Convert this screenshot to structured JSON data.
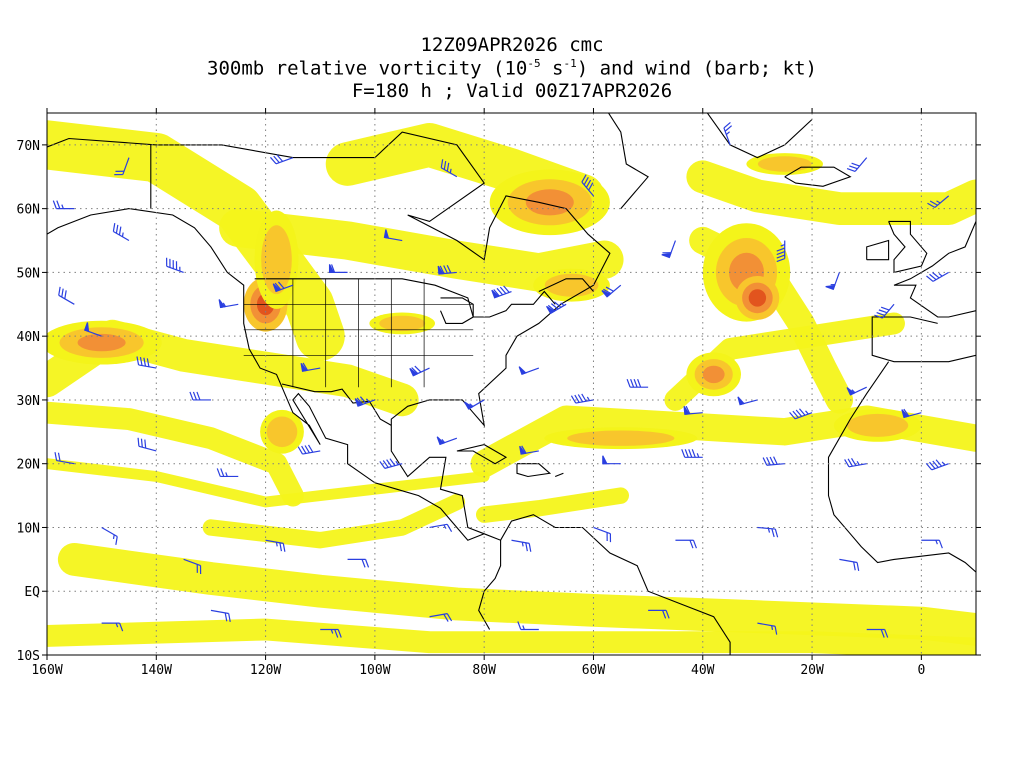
{
  "title": {
    "line1": "12Z09APR2026 cmc",
    "line2_a": "300mb relative vorticity (10",
    "line2_sup1": "-5",
    "line2_b": " s",
    "line2_sup2": "-1",
    "line2_c": ") and wind (barb; kt)",
    "line3": "F=180 h ; Valid 00Z17APR2026"
  },
  "axes": {
    "lat_labels": [
      "70N",
      "60N",
      "50N",
      "40N",
      "30N",
      "20N",
      "10N",
      "EQ",
      "10S"
    ],
    "lat_values": [
      70,
      60,
      50,
      40,
      30,
      20,
      10,
      0,
      -10
    ],
    "lon_labels": [
      "160W",
      "140W",
      "120W",
      "100W",
      "80W",
      "60W",
      "40W",
      "20W",
      "0"
    ],
    "lon_values": [
      -160,
      -140,
      -120,
      -100,
      -80,
      -60,
      -40,
      -20,
      0
    ],
    "lon_range": [
      -160,
      10
    ],
    "lat_range": [
      -10,
      75
    ],
    "grid": "dotted"
  },
  "colors": {
    "shade_light": "#f4f41a",
    "shade_mid": "#f8c62c",
    "shade_orange": "#f29036",
    "shade_dark": "#e2541e",
    "barb": "#2a3fe0",
    "coast": "#000000"
  },
  "map_features": {
    "vorticity": [
      {
        "lon": -150,
        "lat": 39,
        "rx": 11,
        "ry": 4,
        "level": "orange"
      },
      {
        "lon": -120,
        "lat": 45,
        "rx": 4,
        "ry": 5,
        "level": "dark"
      },
      {
        "lon": -118,
        "lat": 52,
        "rx": 4,
        "ry": 9,
        "level": "mid"
      },
      {
        "lon": -95,
        "lat": 42,
        "rx": 6,
        "ry": 2,
        "level": "mid"
      },
      {
        "lon": -68,
        "lat": 61,
        "rx": 11,
        "ry": 6,
        "level": "orange"
      },
      {
        "lon": -64,
        "lat": 48,
        "rx": 7,
        "ry": 3,
        "level": "mid"
      },
      {
        "lon": -32,
        "lat": 50,
        "rx": 8,
        "ry": 9,
        "level": "orange"
      },
      {
        "lon": -30,
        "lat": 46,
        "rx": 4,
        "ry": 4,
        "level": "dark"
      },
      {
        "lon": -38,
        "lat": 34,
        "rx": 5,
        "ry": 4,
        "level": "orange"
      },
      {
        "lon": -55,
        "lat": 24,
        "rx": 14,
        "ry": 2,
        "level": "mid"
      },
      {
        "lon": -117,
        "lat": 25,
        "rx": 4,
        "ry": 4,
        "level": "mid"
      },
      {
        "lon": -8,
        "lat": 26,
        "rx": 8,
        "ry": 3,
        "level": "mid"
      },
      {
        "lon": -25,
        "lat": 67,
        "rx": 7,
        "ry": 2,
        "level": "mid"
      }
    ],
    "bands": [
      {
        "pts": [
          [
            -160,
            70
          ],
          [
            -140,
            68
          ],
          [
            -125,
            60
          ],
          [
            -118,
            52
          ],
          [
            -112,
            45
          ],
          [
            -110,
            40
          ]
        ],
        "w": 9
      },
      {
        "pts": [
          [
            -125,
            57
          ],
          [
            -105,
            55
          ],
          [
            -85,
            52
          ],
          [
            -70,
            50
          ],
          [
            -58,
            52
          ]
        ],
        "w": 7
      },
      {
        "pts": [
          [
            -105,
            67
          ],
          [
            -90,
            70
          ],
          [
            -75,
            66
          ],
          [
            -62,
            62
          ]
        ],
        "w": 8
      },
      {
        "pts": [
          [
            -160,
            33
          ],
          [
            -148,
            40
          ],
          [
            -135,
            37
          ],
          [
            -120,
            35
          ],
          [
            -105,
            33
          ],
          [
            -95,
            30
          ]
        ],
        "w": 6
      },
      {
        "pts": [
          [
            -160,
            28
          ],
          [
            -145,
            27
          ],
          [
            -130,
            24
          ],
          [
            -118,
            20
          ],
          [
            -115,
            15
          ]
        ],
        "w": 4
      },
      {
        "pts": [
          [
            -155,
            5
          ],
          [
            -130,
            2
          ],
          [
            -110,
            0
          ],
          [
            -85,
            -2
          ],
          [
            -60,
            -3
          ],
          [
            -30,
            -4
          ],
          [
            0,
            -5
          ],
          [
            10,
            -6
          ]
        ],
        "w": 6
      },
      {
        "pts": [
          [
            -160,
            -7
          ],
          [
            -120,
            -6
          ],
          [
            -90,
            -8
          ],
          [
            -50,
            -8
          ],
          [
            -20,
            -8
          ],
          [
            10,
            -9
          ]
        ],
        "w": 4
      },
      {
        "pts": [
          [
            -80,
            20
          ],
          [
            -65,
            27
          ],
          [
            -45,
            26
          ],
          [
            -25,
            25
          ],
          [
            -10,
            27
          ],
          [
            10,
            24
          ]
        ],
        "w": 5
      },
      {
        "pts": [
          [
            -45,
            30
          ],
          [
            -35,
            38
          ],
          [
            -20,
            40
          ],
          [
            -5,
            42
          ]
        ],
        "w": 4
      },
      {
        "pts": [
          [
            -40,
            65
          ],
          [
            -30,
            62
          ],
          [
            -15,
            60
          ],
          [
            5,
            60
          ],
          [
            10,
            62
          ]
        ],
        "w": 6
      },
      {
        "pts": [
          [
            -40,
            55
          ],
          [
            -28,
            50
          ],
          [
            -22,
            42
          ],
          [
            -18,
            35
          ],
          [
            -15,
            30
          ]
        ],
        "w": 5
      },
      {
        "pts": [
          [
            -160,
            20
          ],
          [
            -140,
            18
          ],
          [
            -120,
            14
          ],
          [
            -100,
            16
          ],
          [
            -80,
            18
          ]
        ],
        "w": 2
      },
      {
        "pts": [
          [
            -130,
            10
          ],
          [
            -110,
            8
          ],
          [
            -95,
            10
          ],
          [
            -85,
            14
          ]
        ],
        "w": 3
      },
      {
        "pts": [
          [
            -80,
            12
          ],
          [
            -70,
            13
          ],
          [
            -55,
            15
          ]
        ],
        "w": 3
      }
    ],
    "barbs": [
      {
        "lon": -155,
        "lat": 60,
        "dir": 270,
        "spd": 25
      },
      {
        "lon": -145,
        "lat": 55,
        "dir": 300,
        "spd": 35
      },
      {
        "lon": -135,
        "lat": 50,
        "dir": 290,
        "spd": 45
      },
      {
        "lon": -125,
        "lat": 45,
        "dir": 260,
        "spd": 55
      },
      {
        "lon": -115,
        "lat": 48,
        "dir": 250,
        "spd": 70
      },
      {
        "lon": -105,
        "lat": 50,
        "dir": 270,
        "spd": 60
      },
      {
        "lon": -95,
        "lat": 55,
        "dir": 280,
        "spd": 50
      },
      {
        "lon": -85,
        "lat": 50,
        "dir": 265,
        "spd": 80
      },
      {
        "lon": -75,
        "lat": 47,
        "dir": 250,
        "spd": 90
      },
      {
        "lon": -65,
        "lat": 45,
        "dir": 240,
        "spd": 85
      },
      {
        "lon": -55,
        "lat": 48,
        "dir": 230,
        "spd": 70
      },
      {
        "lon": -45,
        "lat": 55,
        "dir": 200,
        "spd": 60
      },
      {
        "lon": -25,
        "lat": 55,
        "dir": 180,
        "spd": 45
      },
      {
        "lon": -15,
        "lat": 50,
        "dir": 200,
        "spd": 55
      },
      {
        "lon": -5,
        "lat": 45,
        "dir": 220,
        "spd": 40
      },
      {
        "lon": 5,
        "lat": 50,
        "dir": 240,
        "spd": 35
      },
      {
        "lon": -150,
        "lat": 40,
        "dir": 290,
        "spd": 50
      },
      {
        "lon": -140,
        "lat": 35,
        "dir": 280,
        "spd": 40
      },
      {
        "lon": -130,
        "lat": 30,
        "dir": 270,
        "spd": 30
      },
      {
        "lon": -110,
        "lat": 35,
        "dir": 260,
        "spd": 60
      },
      {
        "lon": -100,
        "lat": 30,
        "dir": 250,
        "spd": 75
      },
      {
        "lon": -90,
        "lat": 35,
        "dir": 245,
        "spd": 70
      },
      {
        "lon": -80,
        "lat": 30,
        "dir": 240,
        "spd": 55
      },
      {
        "lon": -70,
        "lat": 35,
        "dir": 250,
        "spd": 50
      },
      {
        "lon": -60,
        "lat": 30,
        "dir": 260,
        "spd": 45
      },
      {
        "lon": -50,
        "lat": 32,
        "dir": 270,
        "spd": 40
      },
      {
        "lon": -40,
        "lat": 28,
        "dir": 265,
        "spd": 60
      },
      {
        "lon": -30,
        "lat": 30,
        "dir": 255,
        "spd": 50
      },
      {
        "lon": -20,
        "lat": 28,
        "dir": 250,
        "spd": 45
      },
      {
        "lon": -10,
        "lat": 32,
        "dir": 245,
        "spd": 55
      },
      {
        "lon": 0,
        "lat": 28,
        "dir": 255,
        "spd": 60
      },
      {
        "lon": -155,
        "lat": 20,
        "dir": 280,
        "spd": 20
      },
      {
        "lon": -140,
        "lat": 22,
        "dir": 285,
        "spd": 30
      },
      {
        "lon": -125,
        "lat": 18,
        "dir": 270,
        "spd": 25
      },
      {
        "lon": -110,
        "lat": 22,
        "dir": 260,
        "spd": 40
      },
      {
        "lon": -95,
        "lat": 20,
        "dir": 255,
        "spd": 45
      },
      {
        "lon": -85,
        "lat": 24,
        "dir": 250,
        "spd": 55
      },
      {
        "lon": -70,
        "lat": 22,
        "dir": 260,
        "spd": 60
      },
      {
        "lon": -55,
        "lat": 20,
        "dir": 270,
        "spd": 50
      },
      {
        "lon": -40,
        "lat": 21,
        "dir": 270,
        "spd": 45
      },
      {
        "lon": -25,
        "lat": 20,
        "dir": 265,
        "spd": 40
      },
      {
        "lon": -10,
        "lat": 20,
        "dir": 260,
        "spd": 35
      },
      {
        "lon": 5,
        "lat": 20,
        "dir": 250,
        "spd": 45
      },
      {
        "lon": -150,
        "lat": 10,
        "dir": 120,
        "spd": 15
      },
      {
        "lon": -135,
        "lat": 5,
        "dir": 110,
        "spd": 20
      },
      {
        "lon": -120,
        "lat": 8,
        "dir": 100,
        "spd": 25
      },
      {
        "lon": -105,
        "lat": 5,
        "dir": 90,
        "spd": 20
      },
      {
        "lon": -90,
        "lat": 10,
        "dir": 80,
        "spd": 15
      },
      {
        "lon": -75,
        "lat": 8,
        "dir": 100,
        "spd": 25
      },
      {
        "lon": -60,
        "lat": 10,
        "dir": 110,
        "spd": 20
      },
      {
        "lon": -45,
        "lat": 8,
        "dir": 90,
        "spd": 20
      },
      {
        "lon": -30,
        "lat": 10,
        "dir": 95,
        "spd": 25
      },
      {
        "lon": -15,
        "lat": 5,
        "dir": 100,
        "spd": 20
      },
      {
        "lon": 0,
        "lat": 8,
        "dir": 90,
        "spd": 15
      },
      {
        "lon": -150,
        "lat": -5,
        "dir": 90,
        "spd": 15
      },
      {
        "lon": -130,
        "lat": -3,
        "dir": 100,
        "spd": 20
      },
      {
        "lon": -110,
        "lat": -6,
        "dir": 90,
        "spd": 25
      },
      {
        "lon": -90,
        "lat": -4,
        "dir": 80,
        "spd": 20
      },
      {
        "lon": -70,
        "lat": -6,
        "dir": 270,
        "spd": 15
      },
      {
        "lon": -50,
        "lat": -3,
        "dir": 90,
        "spd": 20
      },
      {
        "lon": -30,
        "lat": -5,
        "dir": 100,
        "spd": 15
      },
      {
        "lon": -10,
        "lat": -6,
        "dir": 90,
        "spd": 20
      },
      {
        "lon": -145,
        "lat": 68,
        "dir": 200,
        "spd": 20
      },
      {
        "lon": -115,
        "lat": 68,
        "dir": 250,
        "spd": 30
      },
      {
        "lon": -85,
        "lat": 65,
        "dir": 300,
        "spd": 35
      },
      {
        "lon": -60,
        "lat": 62,
        "dir": 320,
        "spd": 40
      },
      {
        "lon": -35,
        "lat": 70,
        "dir": 340,
        "spd": 25
      },
      {
        "lon": -10,
        "lat": 68,
        "dir": 220,
        "spd": 30
      },
      {
        "lon": 5,
        "lat": 62,
        "dir": 230,
        "spd": 25
      },
      {
        "lon": -155,
        "lat": 45,
        "dir": 300,
        "spd": 30
      }
    ]
  }
}
